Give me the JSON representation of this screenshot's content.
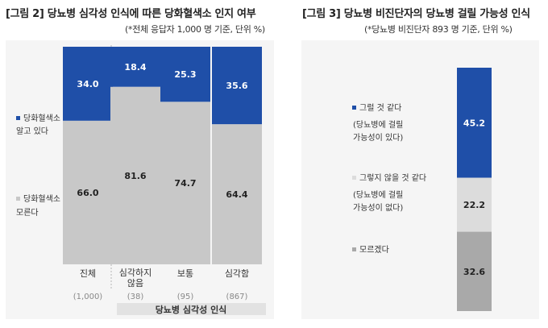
{
  "figure2": {
    "title": "[그림 2] 당뇨병 심각성 인식에 따른 당화혈색소 인지 여부",
    "note": "(*전체 응답자 1,000 명 기준, 단위 %)"
  },
  "figure3": {
    "title": "[그림 3] 당뇨병 비진단자의 당뇨병 걸릴 가능성 인식",
    "note": "(*당뇨병 비진단자 893 명 기준, 단위 %)"
  },
  "colors": {
    "blue": "#1f4fa8",
    "light_gray": "#c8c8c8",
    "pale_gray": "#dcdcdc",
    "dark_gray": "#a9a9a9",
    "panel_bg": "#f5f5f5",
    "axis_title_bg": "#e2e2e2"
  },
  "chart_data": [
    {
      "type": "bar",
      "stacked": true,
      "categories": [
        "진체",
        "심각하지 않음",
        "보통",
        "심각함"
      ],
      "counts": [
        "(1,000)",
        "(38)",
        "(95)",
        "(867)"
      ],
      "xlabel": "당뇨병 심각성 인식",
      "series": [
        {
          "name": "당화혈색소 모른다",
          "values": [
            66.0,
            81.6,
            74.7,
            64.4
          ]
        },
        {
          "name": "당화혈색소 알고 있다",
          "values": [
            34.0,
            18.4,
            25.3,
            35.6
          ]
        }
      ],
      "legend": [
        "당화혈색소 알고 있다",
        "당화혈색소 모른다"
      ],
      "ylim": [
        0,
        100
      ]
    },
    {
      "type": "bar",
      "stacked": true,
      "categories": [
        ""
      ],
      "series": [
        {
          "name": "모르겠다",
          "values": [
            32.6
          ]
        },
        {
          "name": "그렇지 않을 것 같다 (당뇨병에 걸릴 가능성이 없다)",
          "values": [
            22.2
          ]
        },
        {
          "name": "그럴 것 같다 (당뇨병에 걸릴 가능성이 있다)",
          "values": [
            45.2
          ]
        }
      ],
      "legend": [
        [
          "그럴 것 같다",
          "(당뇨병에 걸릴",
          "가능성이 있다)"
        ],
        [
          "그렇지 않을 것 같다",
          "(당뇨병에 걸릴",
          "가능성이 없다)"
        ],
        [
          "모르겠다"
        ]
      ],
      "ylim": [
        0,
        100
      ]
    }
  ]
}
